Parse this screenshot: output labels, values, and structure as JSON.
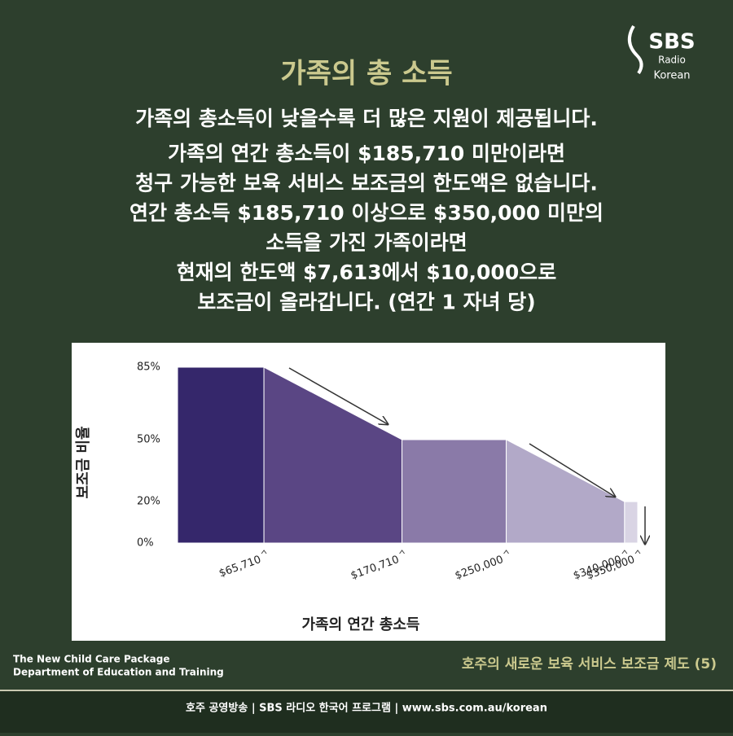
{
  "logo": {
    "brand": "SBS",
    "sub": "Radio",
    "lang": "Korean"
  },
  "header": {
    "title": "가족의 총 소득",
    "subtitle": "가족의 총소득이 낮을수록 더 많은 지원이 제공됩니다.",
    "body": [
      "가족의 연간 총소득이 $185,710 미만이라면",
      "청구 가능한 보육 서비스 보조금의 한도액은 없습니다.",
      "연간 총소득 $185,710 이상으로 $350,000 미만의",
      "소득을 가진 가족이라면",
      "현재의 한도액 $7,613에서 $10,000으로",
      "보조금이 올라갑니다. (연간 1 자녀 당)"
    ]
  },
  "chart_data": {
    "type": "area",
    "x_label": "가족의 연간 총소득",
    "y_label": "보조금 비율",
    "series": [
      {
        "color": "#35276b",
        "x": [
          0,
          65710
        ],
        "values": [
          85,
          85
        ]
      },
      {
        "color": "#5a4684",
        "x": [
          65710,
          170710
        ],
        "values": [
          85,
          50
        ]
      },
      {
        "color": "#8a7aa8",
        "x": [
          170710,
          250000
        ],
        "values": [
          50,
          50
        ]
      },
      {
        "color": "#b2a9c8",
        "x": [
          250000,
          340000
        ],
        "values": [
          50,
          20
        ]
      },
      {
        "color": "#d9d4e4",
        "x": [
          340000,
          350000
        ],
        "values": [
          20,
          20
        ]
      }
    ],
    "xlim": [
      0,
      350000
    ],
    "xticks": [
      {
        "value": 65710,
        "label": "$65,710"
      },
      {
        "value": 170710,
        "label": "$170,710"
      },
      {
        "value": 250000,
        "label": "$250,000"
      },
      {
        "value": 340000,
        "label": "$340,000"
      },
      {
        "value": 350000,
        "label": "$350,000"
      }
    ],
    "ylim": [
      0,
      85
    ],
    "yticks": [
      {
        "value": 0,
        "label": "0%"
      },
      {
        "value": 20,
        "label": "20%"
      },
      {
        "value": 50,
        "label": "50%"
      },
      {
        "value": 85,
        "label": "85%"
      }
    ]
  },
  "source": [
    "The New Child Care Package",
    "Department of Education and Training"
  ],
  "caption": "호주의 새로운 보육 서비스 보조금 제도 (5)",
  "footer": "호주 공영방송 | SBS 라디오 한국어 프로그램 | www.sbs.com.au/korean"
}
